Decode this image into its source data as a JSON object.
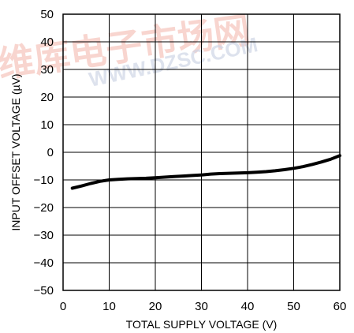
{
  "watermark": {
    "logo_text": "维库电子市场网",
    "url_text": "WWW.DZSC.COM"
  },
  "chart_data": {
    "type": "line",
    "title": "",
    "xlabel": "TOTAL SUPPLY VOLTAGE (V)",
    "ylabel": "INPUT OFFSET VOLTAGE (µV)",
    "xlim": [
      0,
      60
    ],
    "ylim": [
      -50,
      50
    ],
    "xticks": [
      0,
      10,
      20,
      30,
      40,
      50,
      60
    ],
    "yticks": [
      50,
      40,
      30,
      20,
      10,
      0,
      -10,
      -20,
      -30,
      -40,
      -50
    ],
    "xtick_labels": [
      "0",
      "10",
      "20",
      "30",
      "40",
      "50",
      "60"
    ],
    "ytick_labels": [
      "50",
      "40",
      "30",
      "20",
      "10",
      "0",
      "−10",
      "−20",
      "−30",
      "−40",
      "−50"
    ],
    "grid": true,
    "line_color": "#000000",
    "series": [
      {
        "x": [
          2,
          4,
          6,
          8,
          10,
          12,
          14,
          16,
          18,
          20,
          22,
          24,
          26,
          28,
          30,
          32,
          34,
          36,
          38,
          40,
          42,
          44,
          46,
          48,
          50,
          52,
          54,
          56,
          58,
          60
        ],
        "values": [
          -13,
          -12.2,
          -11.3,
          -10.5,
          -10,
          -9.8,
          -9.6,
          -9.5,
          -9.4,
          -9.2,
          -9.0,
          -8.8,
          -8.6,
          -8.4,
          -8.2,
          -7.9,
          -7.7,
          -7.6,
          -7.5,
          -7.4,
          -7.2,
          -7.0,
          -6.7,
          -6.3,
          -5.8,
          -5.2,
          -4.4,
          -3.5,
          -2.5,
          -1.2
        ]
      }
    ]
  }
}
